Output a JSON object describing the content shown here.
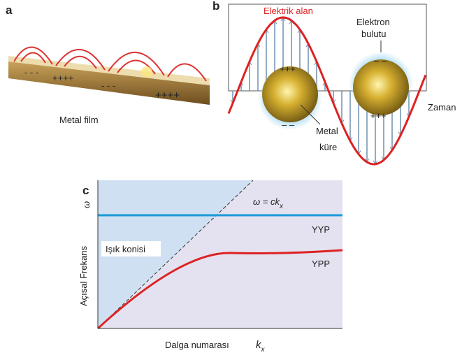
{
  "panel_a": {
    "label": "a",
    "caption": "Metal film",
    "charges": [
      "- - -",
      "++++",
      "- - -",
      "++++"
    ]
  },
  "panel_b": {
    "label": "b",
    "field_label": "Elektrik alan",
    "cloud_label": [
      "Elektron",
      "bulutu"
    ],
    "time_label": "Zaman",
    "sphere_label": [
      "Metal",
      "küre"
    ],
    "sphere_1_charges": [
      "+++",
      "– –"
    ],
    "sphere_2_charges": [
      "– –",
      "+++"
    ]
  },
  "panel_c": {
    "label": "c",
    "light_line_label": "ω = ck",
    "light_line_subscript": "x",
    "upper_label": "YYP",
    "cone_label": "Işık konisi",
    "curve_label": "YPP",
    "y_axis_label": "Açısal Frekans",
    "y_axis_symbol": "ω",
    "x_axis_label": "Dalga numarası",
    "x_axis_symbol": "k",
    "x_axis_subscript": "x"
  }
}
